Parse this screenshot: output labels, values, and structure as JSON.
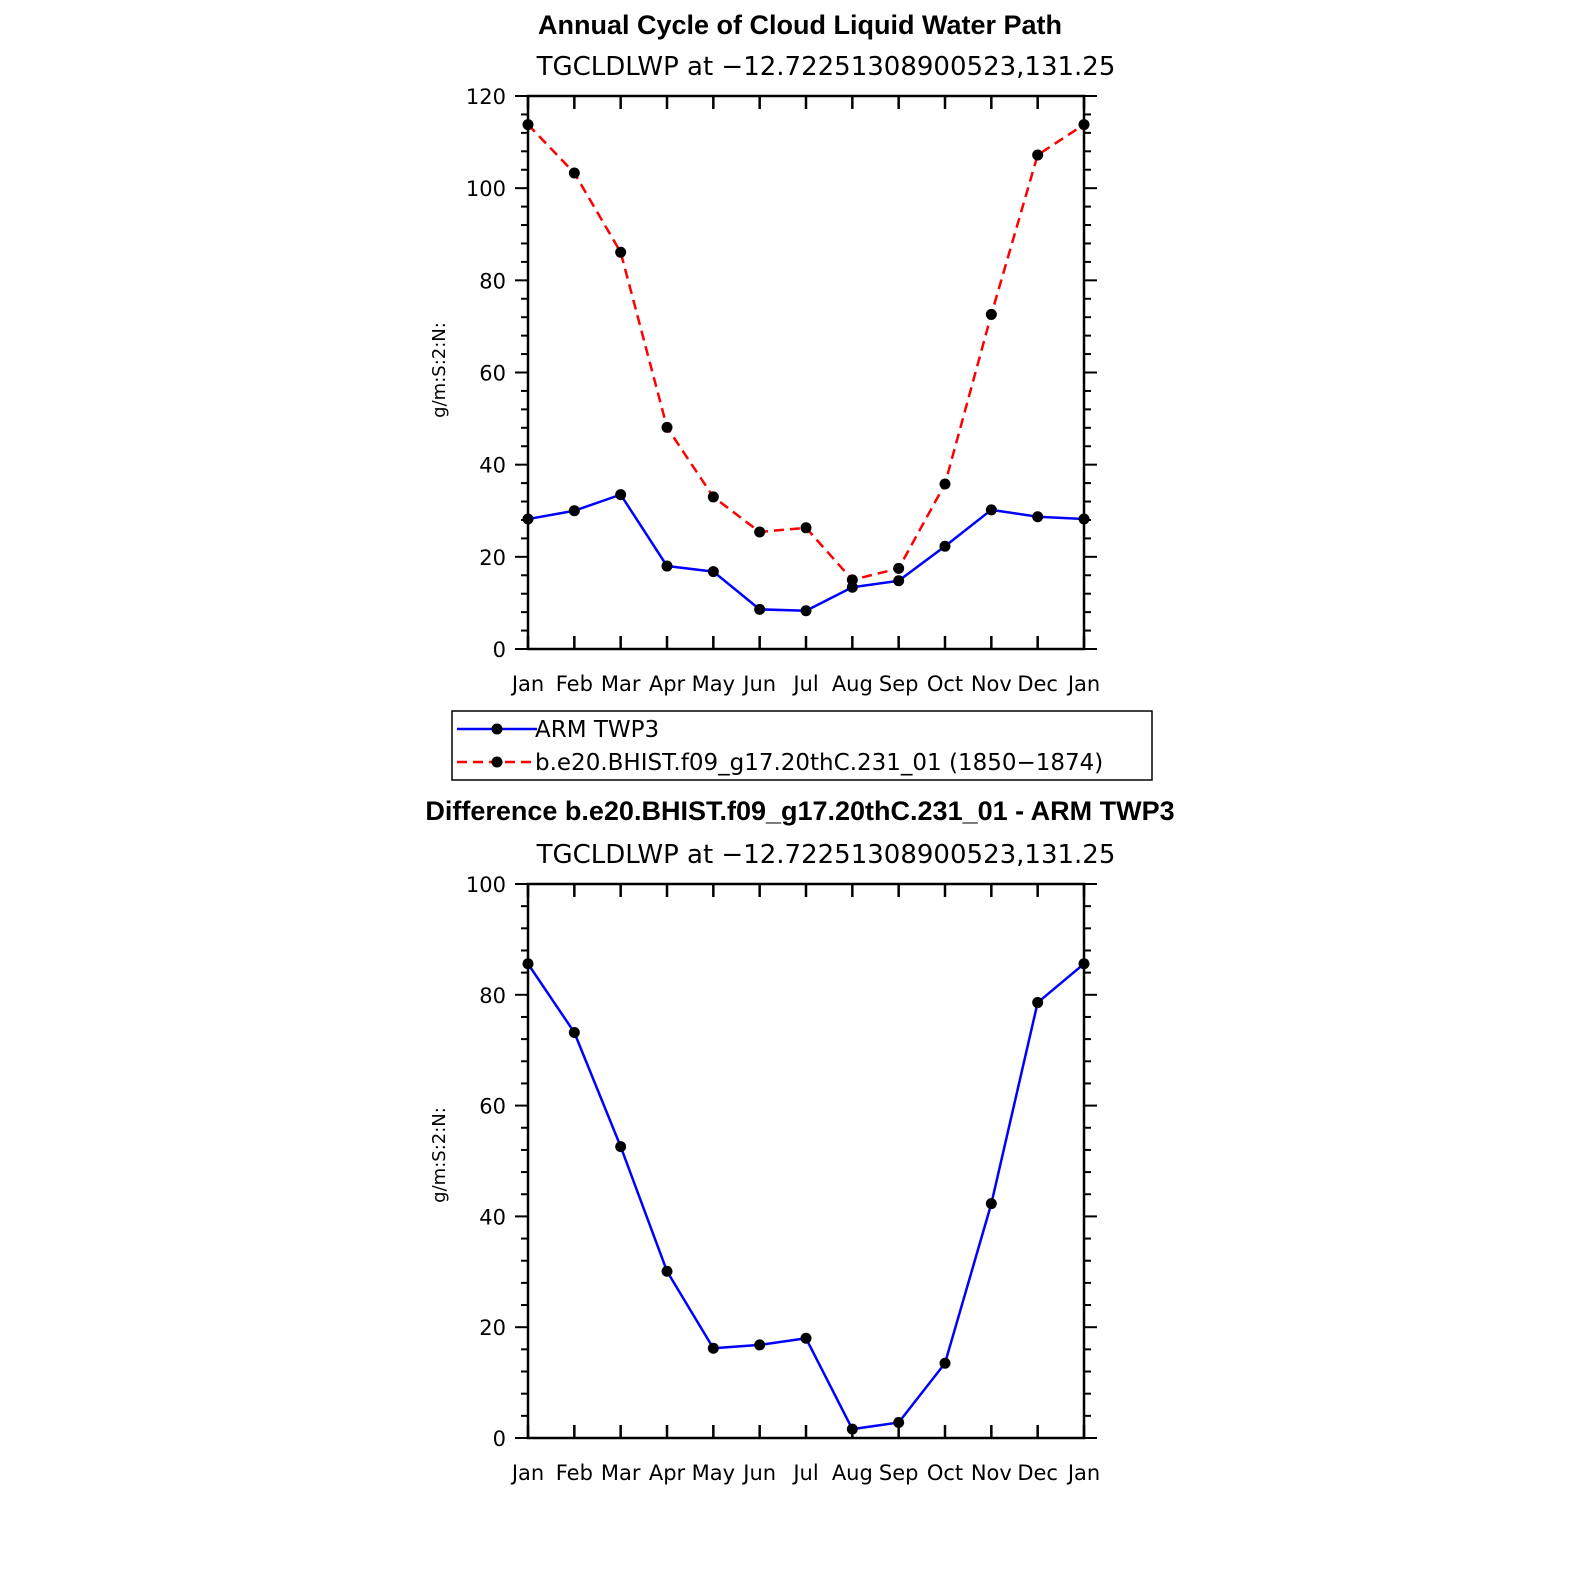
{
  "chart_data": [
    {
      "type": "line",
      "title": "Annual Cycle of Cloud Liquid Water Path",
      "subtitle": "TGCLDLWP at −12.72251308900523,131.25",
      "xlabel": "",
      "ylabel": "g/m:S:2:N:",
      "categories": [
        "Jan",
        "Feb",
        "Mar",
        "Apr",
        "May",
        "Jun",
        "Jul",
        "Aug",
        "Sep",
        "Oct",
        "Nov",
        "Dec",
        "Jan"
      ],
      "ylim": [
        0,
        120
      ],
      "yticks": [
        0,
        20,
        40,
        60,
        80,
        100,
        120
      ],
      "ytick_labels": [
        "0",
        "20",
        "40",
        "60",
        "80",
        "100",
        "120"
      ],
      "series": [
        {
          "name": "ARM TWP3",
          "color": "#0000ff",
          "dash": "solid",
          "values": [
            28.2,
            30.0,
            33.5,
            18.0,
            16.8,
            8.6,
            8.3,
            13.4,
            14.8,
            22.3,
            30.2,
            28.7,
            28.2
          ]
        },
        {
          "name": "b.e20.BHIST.f09_g17.20thC.231_01 (1850−1874)",
          "color": "#ff0000",
          "dash": "dashed",
          "values": [
            113.8,
            103.3,
            86.1,
            48.1,
            33.0,
            25.4,
            26.3,
            15.0,
            17.5,
            35.8,
            72.6,
            107.2,
            113.8
          ]
        }
      ],
      "legend": {
        "placement": "below",
        "entries": [
          "ARM TWP3",
          "b.e20.BHIST.f09_g17.20thC.231_01 (1850−1874)"
        ]
      }
    },
    {
      "type": "line",
      "title": "Difference b.e20.BHIST.f09_g17.20thC.231_01 - ARM TWP3",
      "subtitle": "TGCLDLWP at −12.72251308900523,131.25",
      "xlabel": "",
      "ylabel": "g/m:S:2:N:",
      "categories": [
        "Jan",
        "Feb",
        "Mar",
        "Apr",
        "May",
        "Jun",
        "Jul",
        "Aug",
        "Sep",
        "Oct",
        "Nov",
        "Dec",
        "Jan"
      ],
      "ylim": [
        0,
        100
      ],
      "yticks": [
        0,
        20,
        40,
        60,
        80,
        100
      ],
      "ytick_labels": [
        "0",
        "20",
        "40",
        "60",
        "80",
        "100"
      ],
      "series": [
        {
          "name": "Difference",
          "color": "#0000ff",
          "dash": "solid",
          "values": [
            85.6,
            73.2,
            52.6,
            30.1,
            16.2,
            16.8,
            18.0,
            1.6,
            2.8,
            13.5,
            42.3,
            78.6,
            85.6
          ]
        }
      ]
    }
  ]
}
